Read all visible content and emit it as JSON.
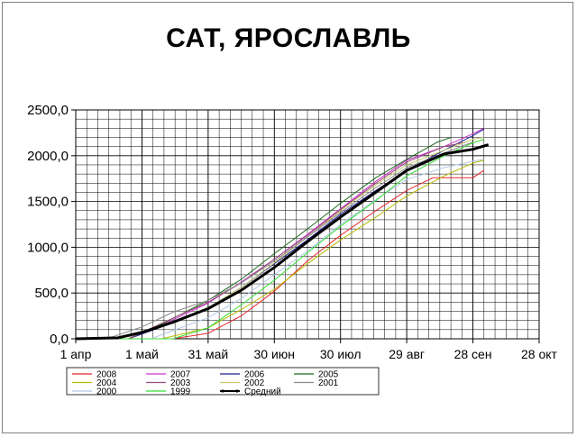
{
  "title": "САТ, ЯРОСЛАВЛЬ",
  "chart_data": {
    "type": "line",
    "title": "САТ, ЯРОСЛАВЛЬ",
    "xlabel": "",
    "ylabel": "",
    "x_tick_labels": [
      "1 апр",
      "1 май",
      "31 май",
      "30 июн",
      "30 июл",
      "29 авг",
      "28 сен",
      "28 окт"
    ],
    "y_tick_labels": [
      "0,0",
      "500,0",
      "1000,0",
      "1500,0",
      "2000,0",
      "2500,0"
    ],
    "ylim": [
      0,
      2500
    ],
    "grid": true,
    "legend_position": "bottom",
    "series": [
      {
        "name": "2008",
        "color": "#e8282a",
        "width": 1,
        "x": [
          "2008-04-01",
          "2008-05-15",
          "2008-05-31",
          "2008-06-15",
          "2008-06-30",
          "2008-07-15",
          "2008-07-30",
          "2008-08-15",
          "2008-08-29",
          "2008-09-10",
          "2008-09-28",
          "2008-10-03"
        ],
        "values": [
          0,
          0,
          60,
          250,
          520,
          850,
          1130,
          1400,
          1620,
          1760,
          1760,
          1840
        ]
      },
      {
        "name": "2007",
        "color": "#cc33cc",
        "width": 1,
        "x": [
          "2007-04-01",
          "2007-04-25",
          "2007-05-10",
          "2007-05-31",
          "2007-06-15",
          "2007-06-30",
          "2007-07-15",
          "2007-07-30",
          "2007-08-15",
          "2007-08-29",
          "2007-09-15",
          "2007-09-28",
          "2007-10-03"
        ],
        "values": [
          0,
          0,
          150,
          390,
          620,
          870,
          1140,
          1420,
          1720,
          1950,
          2100,
          2240,
          2300
        ]
      },
      {
        "name": "2006",
        "color": "#1f1f8f",
        "width": 1,
        "x": [
          "2006-04-01",
          "2006-04-25",
          "2006-05-10",
          "2006-05-31",
          "2006-06-15",
          "2006-06-30",
          "2006-07-15",
          "2006-07-30",
          "2006-08-15",
          "2006-08-29",
          "2006-09-15",
          "2006-09-28",
          "2006-10-03"
        ],
        "values": [
          0,
          0,
          130,
          340,
          560,
          820,
          1080,
          1360,
          1620,
          1840,
          2060,
          2220,
          2290
        ]
      },
      {
        "name": "2005",
        "color": "#1d6b1d",
        "width": 1,
        "x": [
          "2005-04-01",
          "2005-04-25",
          "2005-05-10",
          "2005-05-31",
          "2005-06-15",
          "2005-06-30",
          "2005-07-15",
          "2005-07-30",
          "2005-08-15",
          "2005-08-29",
          "2005-09-12",
          "2005-09-18"
        ],
        "values": [
          0,
          0,
          160,
          420,
          650,
          930,
          1200,
          1480,
          1760,
          1960,
          2150,
          2200
        ]
      },
      {
        "name": "2004",
        "color": "#b5b800",
        "width": 1,
        "x": [
          "2004-04-01",
          "2004-05-10",
          "2004-05-31",
          "2004-06-15",
          "2004-06-30",
          "2004-07-15",
          "2004-07-30",
          "2004-08-15",
          "2004-08-29",
          "2004-09-15",
          "2004-09-28",
          "2004-10-03"
        ],
        "values": [
          0,
          0,
          120,
          320,
          540,
          820,
          1080,
          1330,
          1560,
          1780,
          1920,
          1950
        ]
      },
      {
        "name": "2003",
        "color": "#9a4a7a",
        "width": 1,
        "x": [
          "2003-04-01",
          "2003-04-25",
          "2003-05-10",
          "2003-05-31",
          "2003-06-15",
          "2003-06-30",
          "2003-07-15",
          "2003-07-30",
          "2003-08-15",
          "2003-08-29",
          "2003-09-15",
          "2003-09-25"
        ],
        "values": [
          0,
          0,
          170,
          400,
          610,
          870,
          1130,
          1410,
          1700,
          1930,
          2100,
          2150
        ]
      },
      {
        "name": "2002",
        "color": "#c8c872",
        "width": 1,
        "x": [
          "2002-04-01",
          "2002-04-20",
          "2002-05-10",
          "2002-05-31",
          "2002-06-15",
          "2002-06-30",
          "2002-07-15",
          "2002-07-30",
          "2002-08-15",
          "2002-08-29",
          "2002-09-15",
          "2002-09-28",
          "2002-10-03"
        ],
        "values": [
          0,
          0,
          130,
          340,
          560,
          830,
          1110,
          1400,
          1680,
          1900,
          2060,
          2180,
          2200
        ]
      },
      {
        "name": "2001",
        "color": "#8a8a8a",
        "width": 1,
        "x": [
          "2001-04-01",
          "2001-04-15",
          "2001-05-01",
          "2001-05-15",
          "2001-05-31",
          "2001-06-15",
          "2001-06-30",
          "2001-07-15",
          "2001-07-30",
          "2001-08-15",
          "2001-08-29",
          "2001-09-15",
          "2001-09-28"
        ],
        "values": [
          0,
          0,
          130,
          290,
          420,
          610,
          850,
          1110,
          1380,
          1650,
          1870,
          2030,
          2150
        ]
      },
      {
        "name": "2000",
        "color": "#b3c8e8",
        "width": 1,
        "x": [
          "2000-04-01",
          "2000-05-05",
          "2000-05-31",
          "2000-06-15",
          "2000-06-30",
          "2000-07-15",
          "2000-07-30",
          "2000-08-15",
          "2000-08-29",
          "2000-09-15",
          "2000-09-28",
          "2000-10-03"
        ],
        "values": [
          0,
          0,
          230,
          440,
          700,
          960,
          1250,
          1520,
          1740,
          1870,
          1940,
          1960
        ]
      },
      {
        "name": "1999",
        "color": "#33dd33",
        "width": 1,
        "x": [
          "1999-04-01",
          "1999-05-15",
          "1999-05-31",
          "1999-06-15",
          "1999-06-30",
          "1999-07-15",
          "1999-07-30",
          "1999-08-15",
          "1999-08-29",
          "1999-09-15",
          "1999-09-28",
          "1999-10-03"
        ],
        "values": [
          0,
          0,
          120,
          370,
          640,
          940,
          1230,
          1510,
          1780,
          2000,
          2140,
          2180
        ]
      },
      {
        "name": "Средний",
        "color": "#000000",
        "width": 3,
        "x": [
          "2008-04-01",
          "2008-04-20",
          "2008-05-01",
          "2008-05-15",
          "2008-05-31",
          "2008-06-15",
          "2008-06-30",
          "2008-07-15",
          "2008-07-30",
          "2008-08-15",
          "2008-08-29",
          "2008-09-15",
          "2008-09-28",
          "2008-10-05"
        ],
        "values": [
          0,
          10,
          70,
          180,
          330,
          530,
          780,
          1060,
          1330,
          1600,
          1840,
          2020,
          2070,
          2120
        ]
      }
    ]
  }
}
